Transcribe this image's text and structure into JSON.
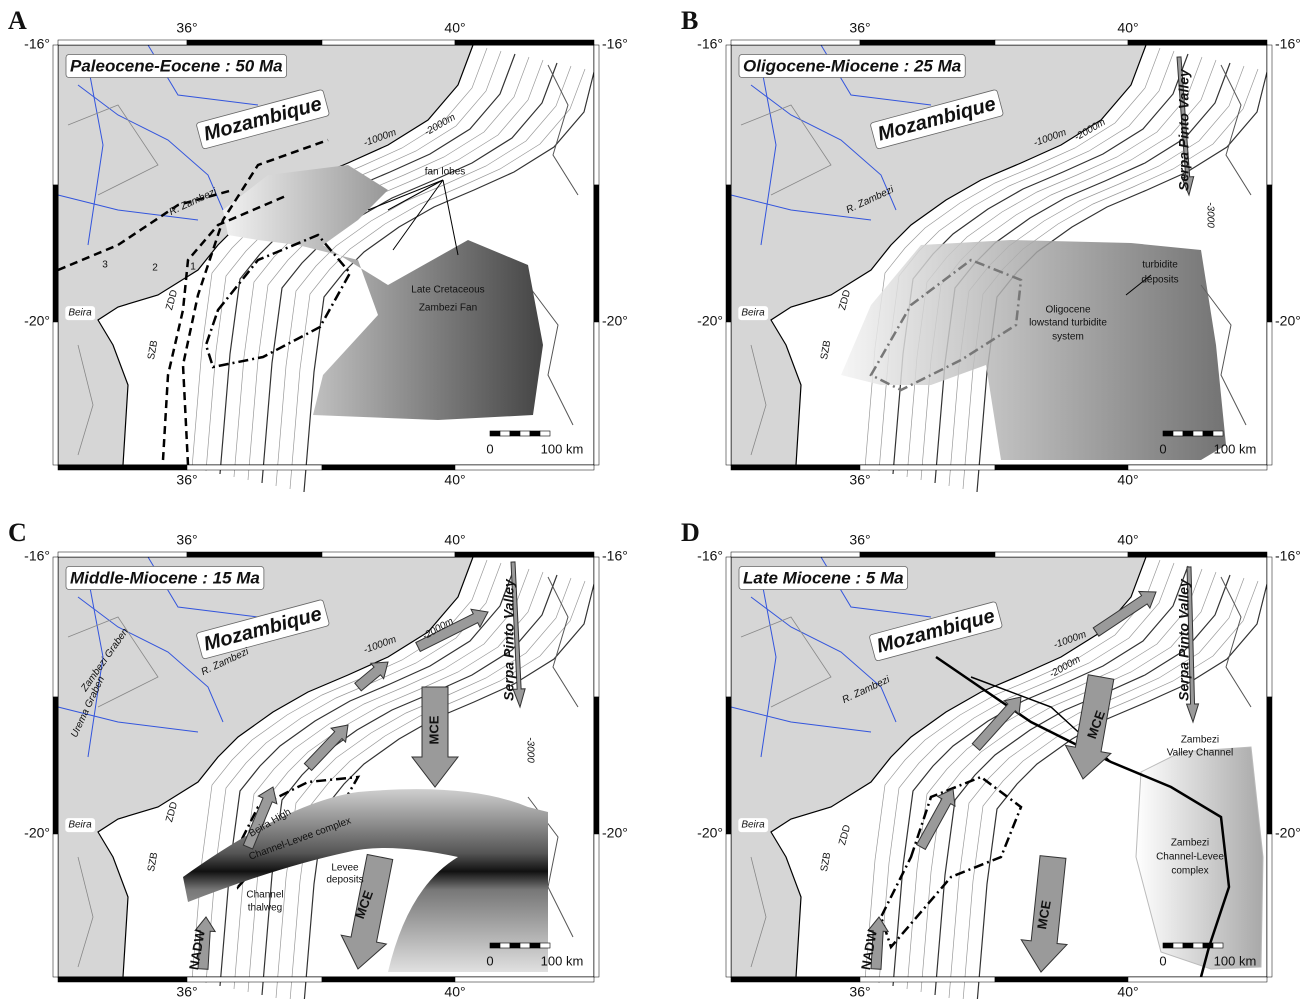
{
  "axes": {
    "lon_labels": [
      "36°",
      "40°"
    ],
    "lat_labels": [
      "-16°",
      "-20°"
    ]
  },
  "panels": [
    {
      "letter": "A",
      "title": "Paleocene-Eocene : 50 Ma",
      "scale_bar": [
        "0",
        "100 km"
      ],
      "labels": [
        "Mozambique",
        "R. Zambezi",
        "Beira",
        "ZDD",
        "SZB",
        "-1000m",
        "-2000m",
        "fan lobes",
        "Late Cretaceous",
        "Zambezi Fan",
        "1",
        "2",
        "3"
      ]
    },
    {
      "letter": "B",
      "title": "Oligocene-Miocene : 25 Ma",
      "scale_bar": [
        "0",
        "100 km"
      ],
      "labels": [
        "Mozambique",
        "R. Zambezi",
        "Beira",
        "ZDD",
        "SZB",
        "-1000m",
        "-2000m",
        "Serpa Pinto Valley",
        "-3000",
        "turbidite",
        "deposits",
        "Oligocene",
        "lowstand turbidite",
        "system"
      ]
    },
    {
      "letter": "C",
      "title": "Middle-Miocene : 15 Ma",
      "scale_bar": [
        "0",
        "100 km"
      ],
      "labels": [
        "Mozambique",
        "R. Zambezi",
        "Beira",
        "ZDD",
        "SZB",
        "-1000m",
        "-2000m",
        "Serpa Pinto Valley",
        "-3000",
        "Zambezi Graben",
        "Urema Graben",
        "MCE",
        "MCE",
        "NADW",
        "Beira High",
        "Channel-Levee complex",
        "Channel",
        "thalweg",
        "Levee",
        "deposits"
      ]
    },
    {
      "letter": "D",
      "title": "Late Miocene : 5 Ma",
      "scale_bar": [
        "0",
        "100 km"
      ],
      "labels": [
        "Mozambique",
        "R. Zambezi",
        "Beira",
        "ZDD",
        "SZB",
        "-1000m",
        "-2000m",
        "Serpa Pinto Valley",
        "MCE",
        "MCE",
        "NADW",
        "Zambezi",
        "Valley Channel",
        "Zambezi",
        "Channel-Levee",
        "complex"
      ]
    }
  ]
}
